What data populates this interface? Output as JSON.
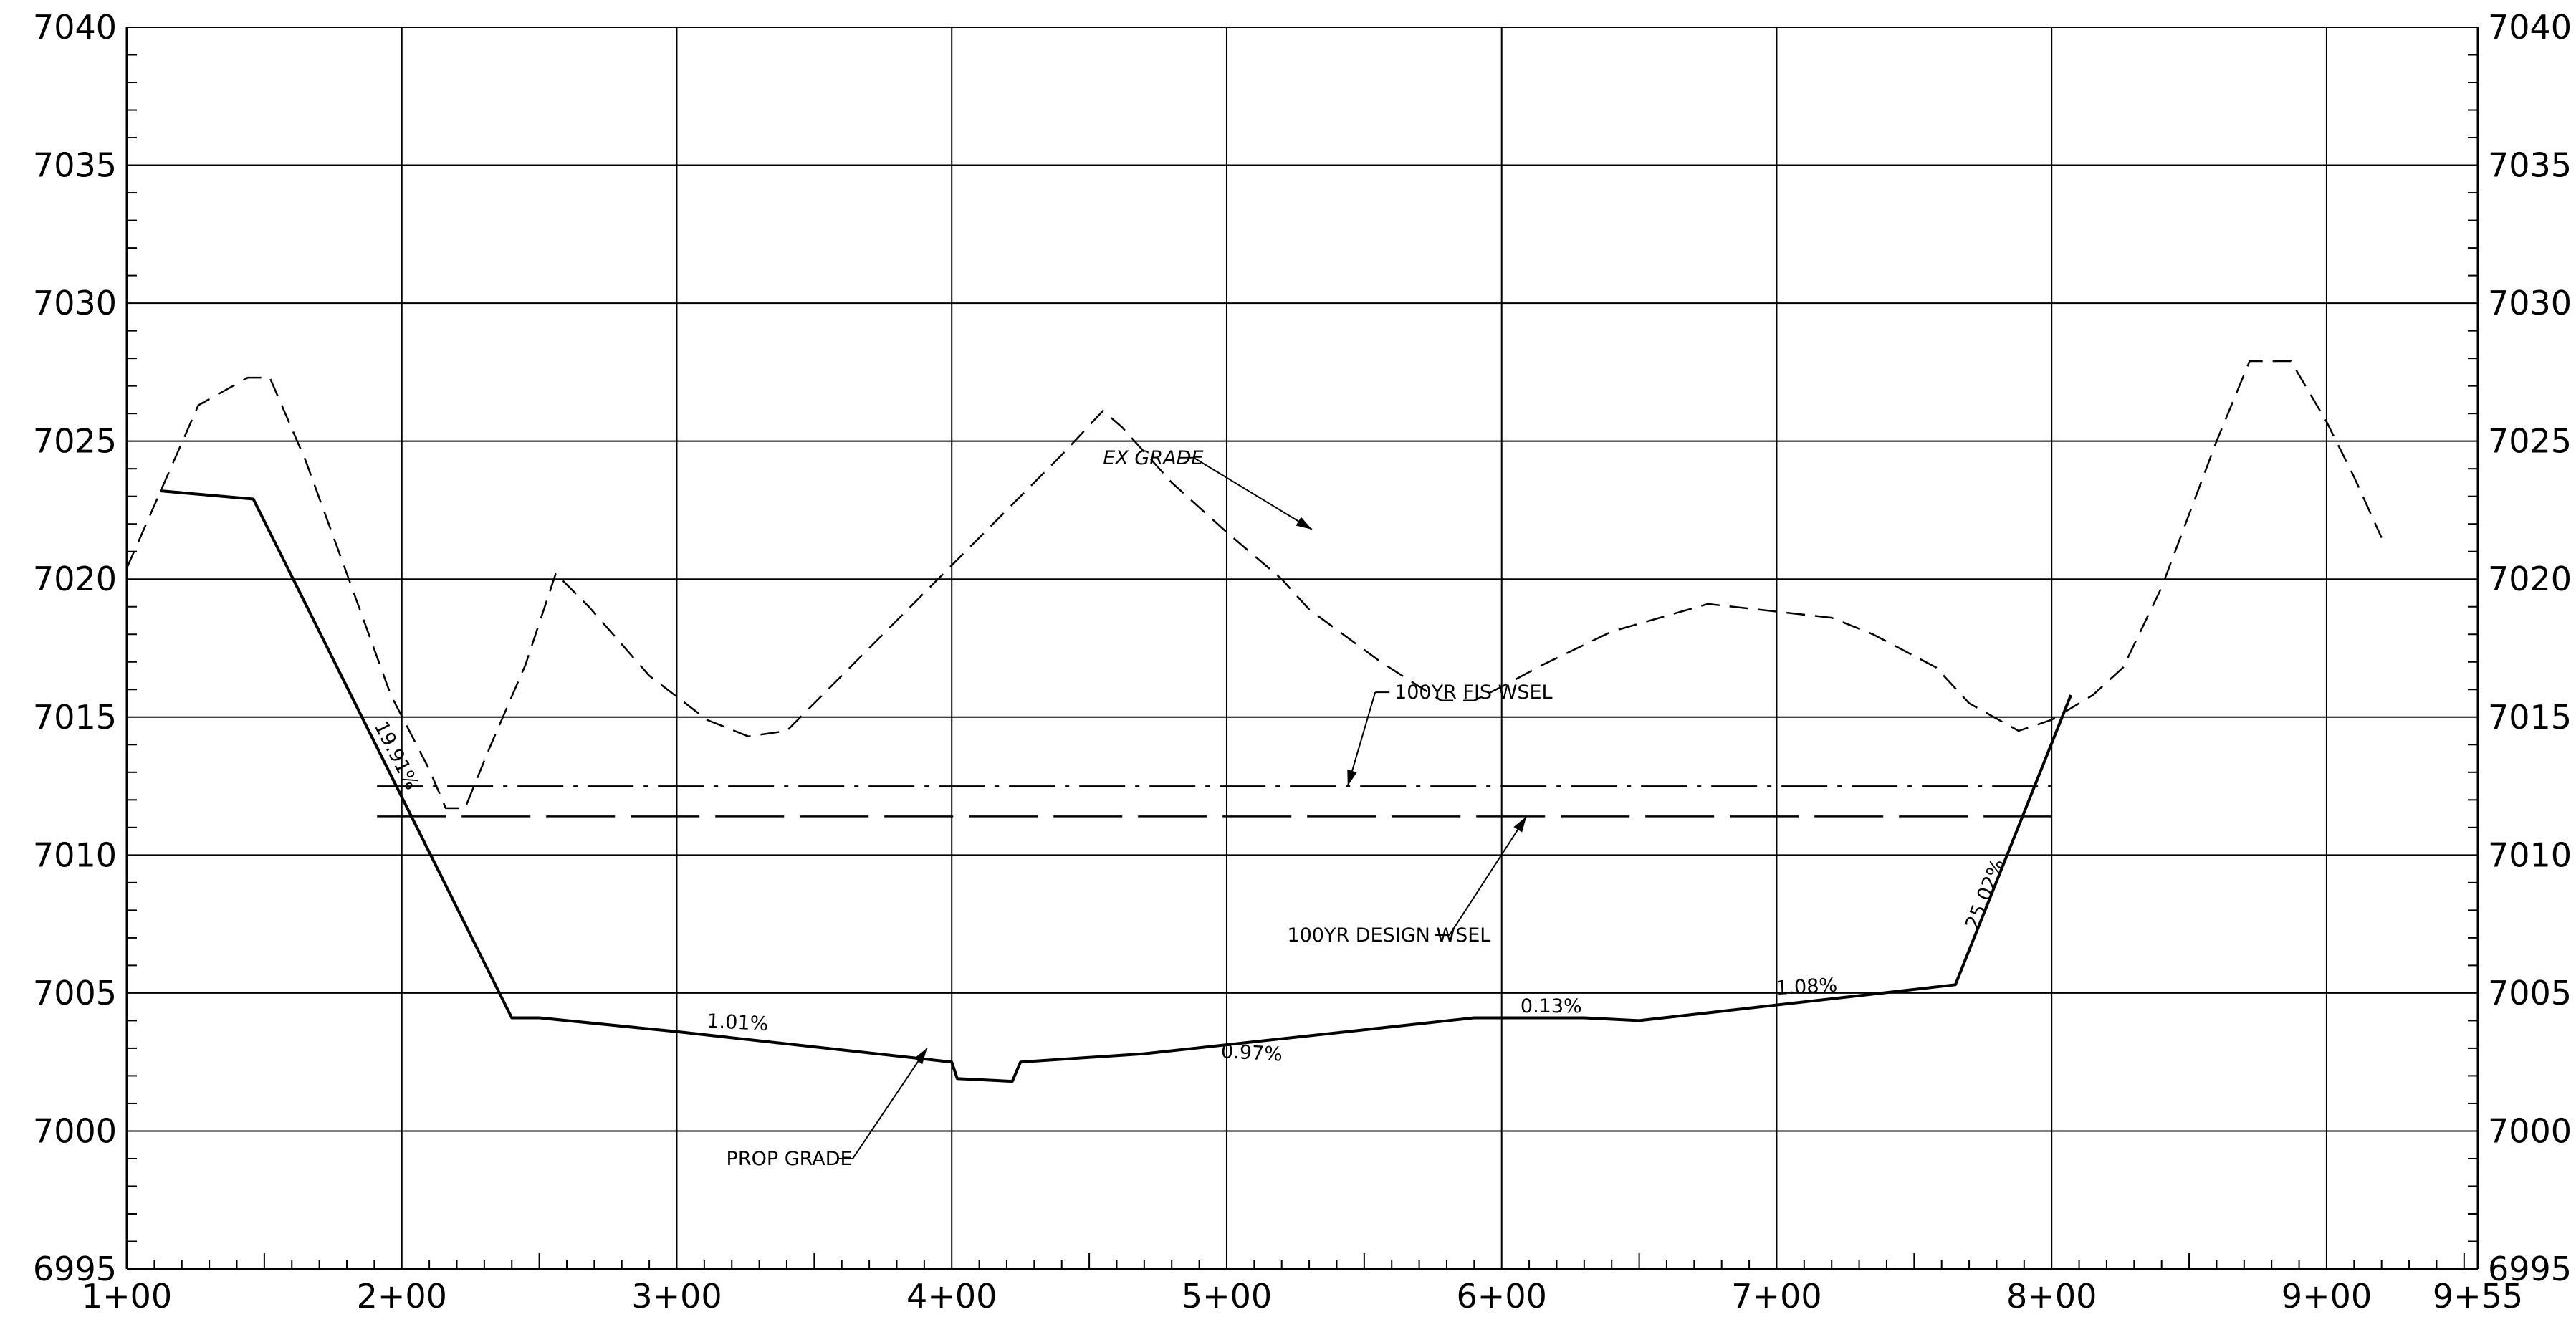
{
  "chart_data": {
    "type": "line",
    "title": "",
    "xlabel": "",
    "ylabel": "",
    "xlim": [
      100,
      955
    ],
    "ylim": [
      6995,
      7040
    ],
    "grid": true,
    "x_ticks": [
      {
        "value": 100,
        "label": "1+00"
      },
      {
        "value": 200,
        "label": "2+00"
      },
      {
        "value": 300,
        "label": "3+00"
      },
      {
        "value": 400,
        "label": "4+00"
      },
      {
        "value": 500,
        "label": "5+00"
      },
      {
        "value": 600,
        "label": "6+00"
      },
      {
        "value": 700,
        "label": "7+00"
      },
      {
        "value": 800,
        "label": "8+00"
      },
      {
        "value": 900,
        "label": "9+00"
      },
      {
        "value": 955,
        "label": "9+55"
      }
    ],
    "y_ticks": [
      {
        "value": 6995,
        "label": "6995"
      },
      {
        "value": 7000,
        "label": "7000"
      },
      {
        "value": 7005,
        "label": "7005"
      },
      {
        "value": 7010,
        "label": "7010"
      },
      {
        "value": 7015,
        "label": "7015"
      },
      {
        "value": 7020,
        "label": "7020"
      },
      {
        "value": 7025,
        "label": "7025"
      },
      {
        "value": 7030,
        "label": "7030"
      },
      {
        "value": 7035,
        "label": "7035"
      },
      {
        "value": 7040,
        "label": "7040"
      }
    ],
    "series": [
      {
        "name": "EX GRADE",
        "style": "dashed",
        "color": "#000000",
        "points": [
          [
            100,
            7020.4
          ],
          [
            126,
            7026.3
          ],
          [
            144,
            7027.3
          ],
          [
            152,
            7027.3
          ],
          [
            165,
            7024.3
          ],
          [
            180,
            7020.2
          ],
          [
            196,
            7015.8
          ],
          [
            210,
            7013.1
          ],
          [
            216,
            7011.7
          ],
          [
            223,
            7011.7
          ],
          [
            232,
            7013.9
          ],
          [
            245,
            7016.9
          ],
          [
            256,
            7020.2
          ],
          [
            268,
            7019.0
          ],
          [
            290,
            7016.5
          ],
          [
            311,
            7014.9
          ],
          [
            326,
            7014.3
          ],
          [
            340,
            7014.5
          ],
          [
            360,
            7016.5
          ],
          [
            400,
            7020.5
          ],
          [
            440,
            7024.5
          ],
          [
            455,
            7026.1
          ],
          [
            462,
            7025.5
          ],
          [
            480,
            7023.5
          ],
          [
            500,
            7021.7
          ],
          [
            520,
            7020.0
          ],
          [
            530,
            7018.9
          ],
          [
            556,
            7017.0
          ],
          [
            578,
            7015.6
          ],
          [
            590,
            7015.6
          ],
          [
            600,
            7016.1
          ],
          [
            615,
            7016.9
          ],
          [
            640,
            7018.1
          ],
          [
            675,
            7019.1
          ],
          [
            720,
            7018.6
          ],
          [
            735,
            7018.0
          ],
          [
            758,
            7016.8
          ],
          [
            770,
            7015.5
          ],
          [
            788,
            7014.5
          ],
          [
            800,
            7014.9
          ],
          [
            815,
            7015.8
          ],
          [
            826,
            7016.8
          ],
          [
            840,
            7019.7
          ],
          [
            860,
            7025.0
          ],
          [
            872,
            7027.9
          ],
          [
            887,
            7027.9
          ],
          [
            900,
            7025.7
          ],
          [
            910,
            7023.7
          ],
          [
            920,
            7021.5
          ]
        ]
      },
      {
        "name": "PROP GRADE",
        "style": "solid",
        "color": "#000000",
        "points": [
          [
            112,
            7023.2
          ],
          [
            146,
            7022.9
          ],
          [
            240,
            7004.1
          ],
          [
            250,
            7004.1
          ],
          [
            300,
            7003.6
          ],
          [
            400,
            7002.5
          ],
          [
            402,
            7001.9
          ],
          [
            422,
            7001.8
          ],
          [
            425,
            7002.5
          ],
          [
            470,
            7002.8
          ],
          [
            590,
            7004.1
          ],
          [
            630,
            7004.1
          ],
          [
            650,
            7004.0
          ],
          [
            765,
            7005.3
          ],
          [
            807,
            7015.8
          ]
        ]
      },
      {
        "name": "100YR FIS WSEL",
        "style": "dash-dot",
        "color": "#000000",
        "points": [
          [
            191,
            7012.5
          ],
          [
            800,
            7012.5
          ]
        ]
      },
      {
        "name": "100YR DESIGN WSEL",
        "style": "long-dash",
        "color": "#000000",
        "points": [
          [
            191,
            7011.4
          ],
          [
            800,
            7011.4
          ]
        ]
      }
    ],
    "callouts": [
      {
        "text": "EX GRADE",
        "italic": true,
        "x": 455,
        "y": 7024.4,
        "elbow": [
          488,
          7024.4
        ],
        "arrow_to": [
          531,
          7021.8
        ]
      },
      {
        "text": "100YR FIS WSEL",
        "italic": false,
        "x": 561,
        "y": 7015.9,
        "elbow": [
          554,
          7015.9
        ],
        "arrow_to": [
          544,
          7012.5
        ]
      },
      {
        "text": "100YR DESIGN WSEL",
        "italic": false,
        "x": 522,
        "y": 7007.1,
        "elbow": [
          581,
          7007.1
        ],
        "arrow_to": [
          609,
          7011.4
        ]
      },
      {
        "text": "PROP GRADE",
        "italic": false,
        "x": 318,
        "y": 6999.0,
        "elbow": [
          364,
          6999.0
        ],
        "arrow_to": [
          391,
          7003.0
        ]
      }
    ],
    "slope_labels": [
      {
        "text": "19.91%",
        "x": 196,
        "y": 7013.5,
        "angle": 63
      },
      {
        "text": "1.01%",
        "x": 322,
        "y": 7003.7,
        "angle": 3
      },
      {
        "text": "0.97%",
        "x": 509,
        "y": 7002.6,
        "angle": 3
      },
      {
        "text": "0.13%",
        "x": 618,
        "y": 7004.3,
        "angle": 0
      },
      {
        "text": "1.08%",
        "x": 711,
        "y": 7005.0,
        "angle": -3
      },
      {
        "text": "25.02%",
        "x": 778,
        "y": 7008.5,
        "angle": -68
      }
    ]
  }
}
